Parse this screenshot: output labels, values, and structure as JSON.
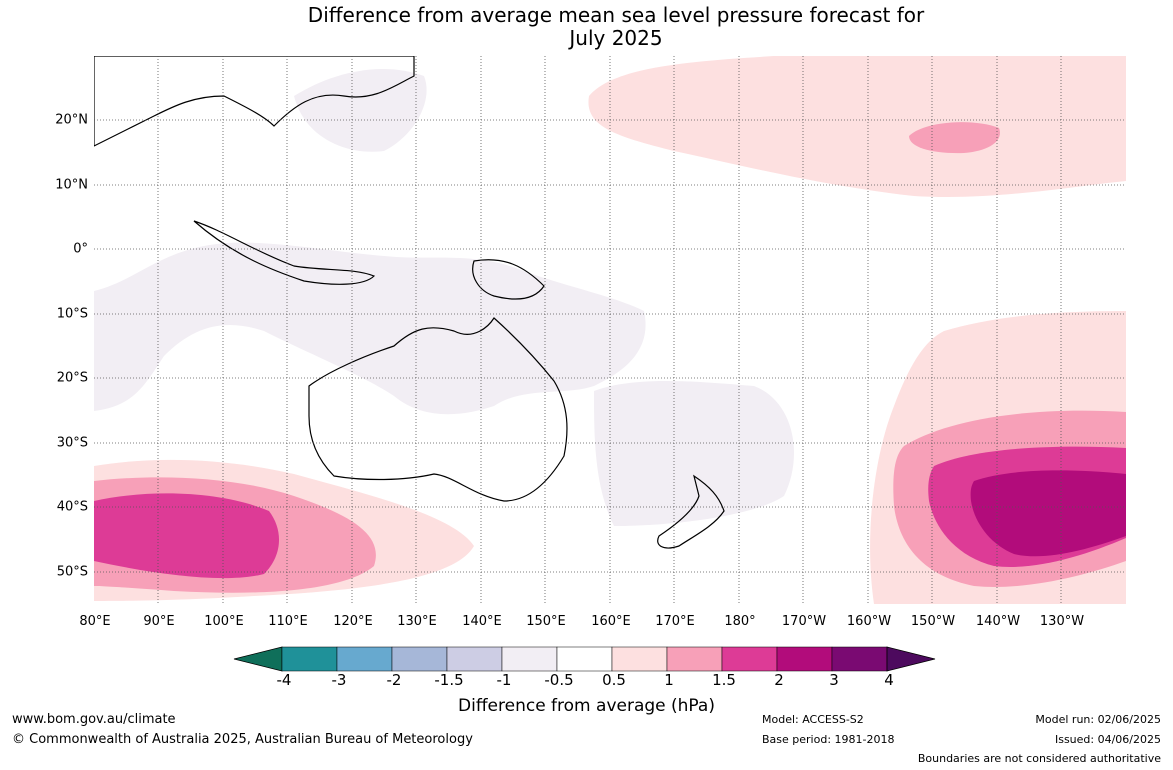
{
  "title_line1": "Difference from average mean sea level pressure forecast for",
  "title_line2": "July 2025",
  "latitude_labels": [
    "20°N",
    "10°N",
    "0°",
    "10°S",
    "20°S",
    "30°S",
    "40°S",
    "50°S"
  ],
  "longitude_labels": [
    "80°E",
    "90°E",
    "100°E",
    "110°E",
    "120°E",
    "130°E",
    "140°E",
    "150°E",
    "160°E",
    "170°E",
    "180°",
    "170°W",
    "160°W",
    "150°W",
    "140°W",
    "130°W"
  ],
  "colorbar": {
    "tick_labels": [
      "-4",
      "-3",
      "-2",
      "-1.5",
      "-1",
      "-0.5",
      "0.5",
      "1",
      "1.5",
      "2",
      "3",
      "4"
    ],
    "colors": [
      "#0f6f5a",
      "#1f9199",
      "#67a9cf",
      "#a6b7d8",
      "#cdcde4",
      "#f2eef4",
      "#ffffff",
      "#fde0e0",
      "#f7a0b8",
      "#dd3b96",
      "#b20c7b",
      "#7a0a72",
      "#4d0a5e"
    ],
    "label": "Difference from average (hPa)"
  },
  "footer": {
    "website": "www.bom.gov.au/climate",
    "copyright": "© Commonwealth of Australia 2025, Australian Bureau of Meteorology",
    "model": "Model: ACCESS-S2",
    "base_period": "Base period: 1981-2018",
    "model_run": "Model run: 02/06/2025",
    "issued": "Issued: 04/06/2025",
    "disclaimer": "Boundaries are not considered authoritative"
  }
}
